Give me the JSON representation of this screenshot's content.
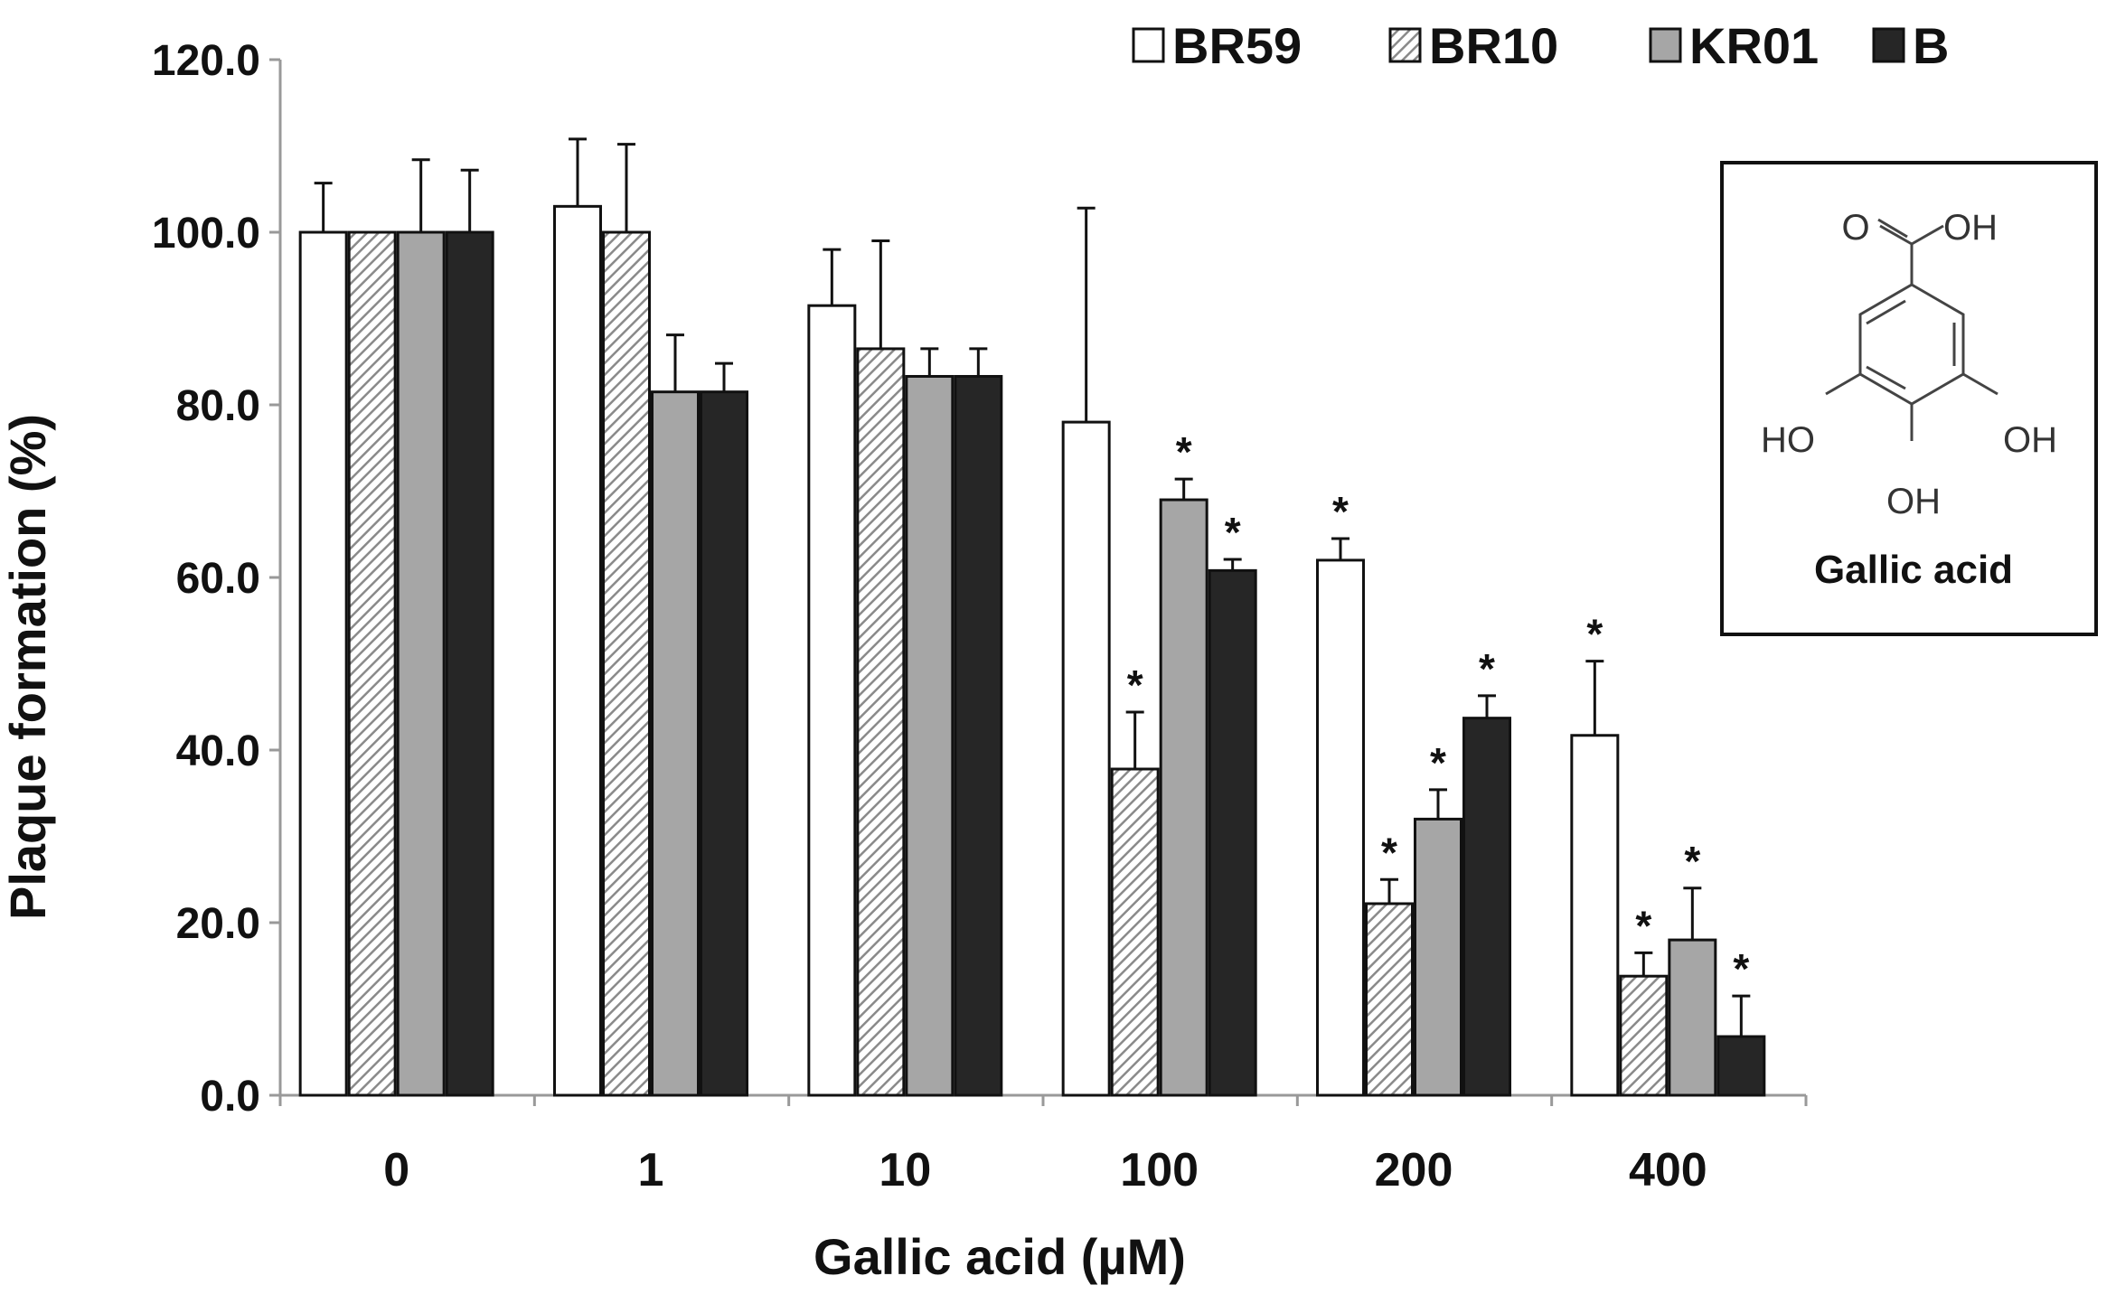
{
  "chart_data": {
    "type": "bar",
    "xlabel": "Gallic acid (µM)",
    "ylabel": "Plaque formation (%)",
    "ylim": [
      0,
      120
    ],
    "yticks": [
      "0.0",
      "20.0",
      "40.0",
      "60.0",
      "80.0",
      "100.0",
      "120.0"
    ],
    "categories": [
      "0",
      "1",
      "10",
      "100",
      "200",
      "400"
    ],
    "legend_position": "top-right",
    "grid": false,
    "series": [
      {
        "name": "BR59",
        "color": "#ffffff",
        "pattern": "none",
        "values": [
          100.0,
          103.0,
          91.5,
          78.0,
          62.0,
          41.7
        ],
        "errors": [
          5.7,
          7.8,
          6.5,
          24.8,
          2.5,
          8.6
        ],
        "significant": [
          false,
          false,
          false,
          false,
          true,
          true
        ]
      },
      {
        "name": "BR10",
        "color": "#ffffff",
        "pattern": "hatch",
        "values": [
          100.0,
          100.0,
          86.5,
          37.8,
          22.2,
          13.8
        ],
        "errors": [
          0.0,
          10.2,
          12.5,
          6.6,
          2.8,
          2.7
        ],
        "significant": [
          false,
          false,
          false,
          true,
          true,
          true
        ]
      },
      {
        "name": "KR01",
        "color": "#a6a6a6",
        "pattern": "none",
        "values": [
          100.0,
          81.5,
          83.3,
          69.0,
          32.0,
          18.0
        ],
        "errors": [
          8.4,
          6.6,
          3.2,
          2.4,
          3.4,
          6.0
        ],
        "significant": [
          false,
          false,
          false,
          true,
          true,
          true
        ]
      },
      {
        "name": "B",
        "color": "#262626",
        "pattern": "none",
        "values": [
          100.0,
          81.5,
          83.3,
          60.8,
          43.7,
          6.8
        ],
        "errors": [
          7.2,
          3.3,
          3.2,
          1.3,
          2.6,
          4.7
        ],
        "significant": [
          false,
          false,
          false,
          true,
          true,
          true
        ]
      }
    ],
    "annotation_symbol": "*"
  },
  "inset": {
    "compound_name": "Gallic acid",
    "labels": {
      "o": "O",
      "oh_acid": "OH",
      "ho_left": "HO",
      "oh_right": "OH",
      "oh_bottom": "OH"
    }
  }
}
